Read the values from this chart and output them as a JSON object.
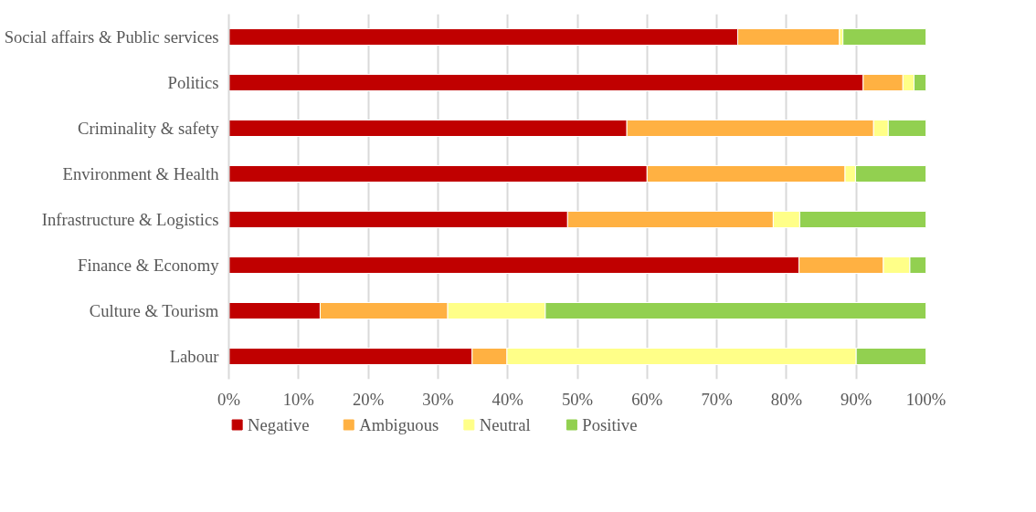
{
  "chart_data": {
    "type": "bar",
    "orientation": "horizontal",
    "stacked": true,
    "categories": [
      "Social affairs & Public services",
      "Politics",
      "Criminality & safety",
      "Environment & Health",
      "Infrastructure & Logistics",
      "Finance & Economy",
      "Culture & Tourism",
      "Labour"
    ],
    "series": [
      {
        "name": "Negative",
        "color": "#c00000",
        "values": [
          73.0,
          91.0,
          57.1,
          60.0,
          48.6,
          81.8,
          13.1,
          34.9
        ]
      },
      {
        "name": "Ambiguous",
        "color": "#ffb142",
        "values": [
          14.6,
          5.7,
          35.4,
          28.4,
          29.5,
          12.1,
          18.3,
          5.0
        ]
      },
      {
        "name": "Neutral",
        "color": "#ffff88",
        "values": [
          0.5,
          1.6,
          2.1,
          1.5,
          3.8,
          3.8,
          14.0,
          50.1
        ]
      },
      {
        "name": "Positive",
        "color": "#92d050",
        "values": [
          11.9,
          1.7,
          5.4,
          10.1,
          18.1,
          2.3,
          54.6,
          10.0
        ]
      }
    ],
    "xlim": [
      0,
      100
    ],
    "xticks": [
      {
        "value": 0,
        "label": "0%"
      },
      {
        "value": 10,
        "label": "10%"
      },
      {
        "value": 20,
        "label": "20%"
      },
      {
        "value": 30,
        "label": "30%"
      },
      {
        "value": 40,
        "label": "40%"
      },
      {
        "value": 50,
        "label": "50%"
      },
      {
        "value": 60,
        "label": "60%"
      },
      {
        "value": 70,
        "label": "70%"
      },
      {
        "value": 80,
        "label": "80%"
      },
      {
        "value": 90,
        "label": "90%"
      },
      {
        "value": 100,
        "label": "100%"
      }
    ],
    "grid": "x",
    "legend": "bottom"
  }
}
